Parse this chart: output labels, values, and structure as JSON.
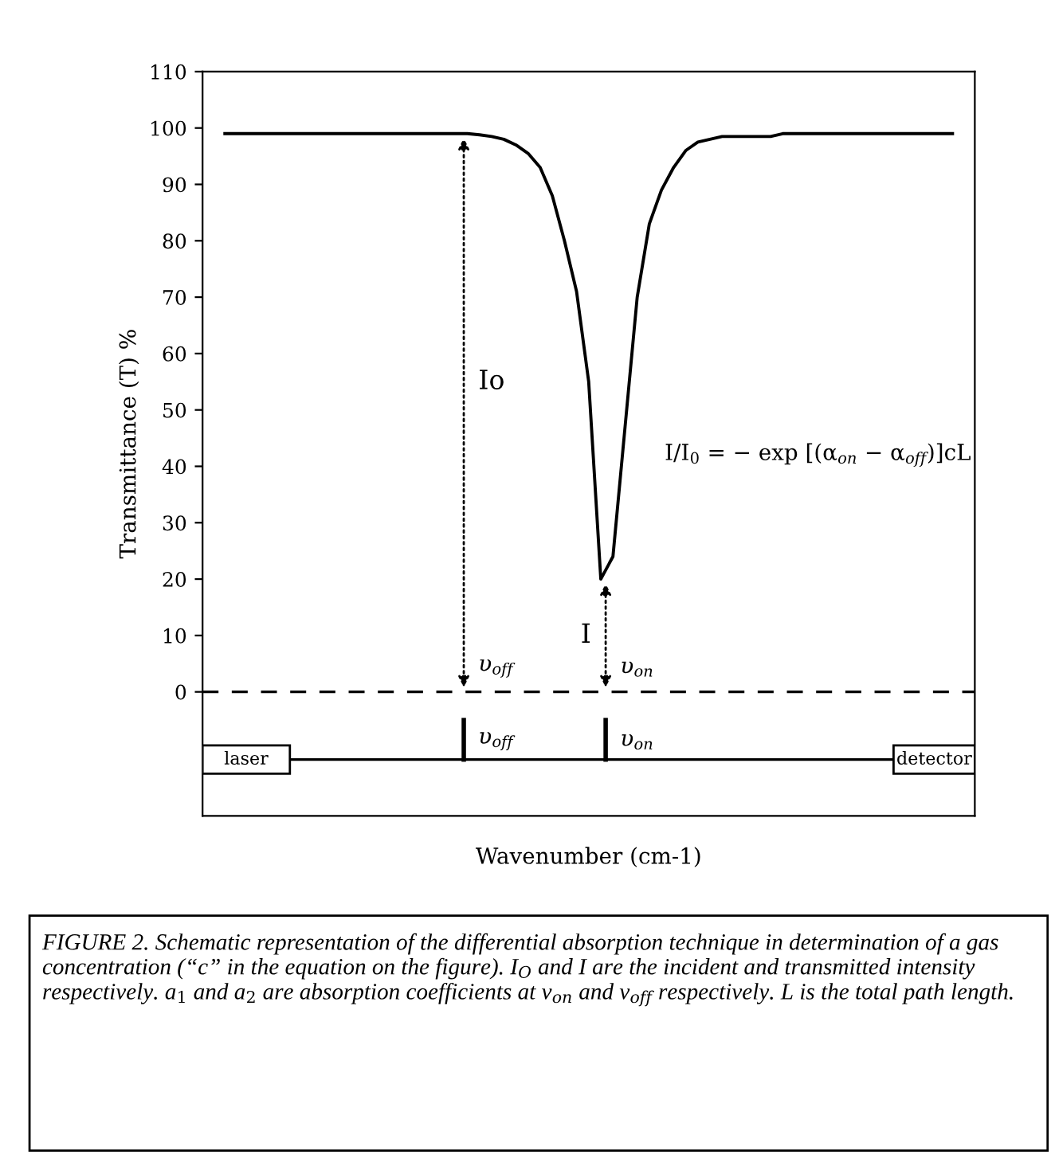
{
  "chart_data": {
    "type": "line",
    "xlabel": "Wavenumber (cm-1)",
    "ylabel": "Transmittance (T) %",
    "categories": [
      null,
      null,
      null,
      null,
      null,
      null,
      null,
      null,
      null,
      null,
      null,
      null,
      null,
      null,
      null,
      null,
      null,
      null,
      null,
      null,
      null,
      null,
      null,
      null,
      null,
      null,
      null,
      null,
      null,
      null,
      null,
      null,
      null,
      null,
      null,
      null,
      null,
      null,
      null,
      null,
      null,
      null,
      null,
      null,
      null,
      null,
      null,
      null,
      null,
      null,
      null,
      null,
      null,
      null,
      null,
      null,
      null,
      null,
      null,
      null,
      null
    ],
    "series": [
      {
        "color": "#000000",
        "values": [
          99,
          99,
          99,
          99,
          99,
          99,
          99,
          99,
          99,
          99,
          99,
          99,
          99,
          99,
          99,
          99,
          99,
          99,
          99,
          99,
          99,
          98.8,
          98.5,
          98,
          97,
          95.5,
          93,
          88,
          80,
          71,
          55,
          20,
          24,
          47,
          70,
          83,
          89,
          93,
          96,
          97.5,
          98,
          98.5,
          98.5,
          98.5,
          98.5,
          98.5,
          99,
          99,
          99,
          99,
          99,
          99,
          99,
          99,
          99,
          99,
          99,
          99,
          99,
          99,
          99
        ]
      }
    ],
    "ylim": [
      -22,
      110
    ],
    "yticks": [
      0,
      10,
      20,
      30,
      40,
      50,
      60,
      70,
      80,
      90,
      100,
      110
    ],
    "tick_labels": "y",
    "grid": false,
    "legend": false,
    "marker": "none",
    "line_style": "solid",
    "ref_lines": [
      {
        "axis": "y",
        "value": 0,
        "line_style": "dashed",
        "color": "#000000"
      }
    ],
    "annotations": [
      "Io",
      "I",
      "υ$_{off}$",
      "υ$_{on}$",
      "I/I$_{0}$ = − exp [(α$_{on}$ − α$_{off}$)]cL",
      "laser",
      "detector",
      "υ$_{off}$",
      "υ$_{on}$",
      "FIGURE 2. Schematic representation of the differential absorption technique in determination of a gas concentration (“c” in the equation on the figure). I$_{O}$ and I are the incident and transmitted intensity respectively. a$_{1}$ and a$_{2}$ are absorption coefficients at ν$_{on}$ and ν$_{off}$ respectively. L is the total path length."
    ]
  }
}
